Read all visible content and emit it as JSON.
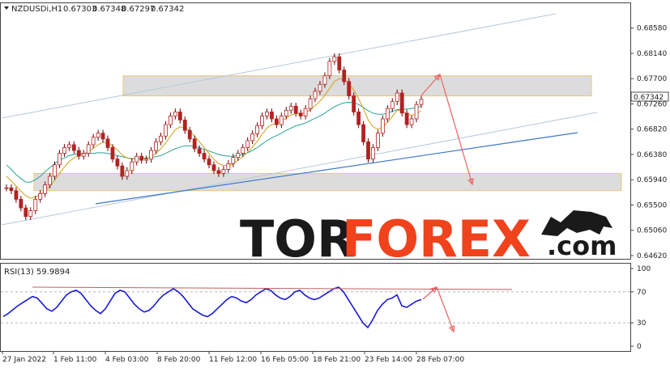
{
  "chart_data": [
    {
      "type": "candlestick",
      "symbol": "NZDUSDi,H1",
      "ohlc_header": [
        "0.67303",
        "0.67348",
        "0.67297",
        "0.67342"
      ],
      "current_price": "0.67342",
      "ylim": [
        0.6462,
        0.689
      ],
      "y_ticks": [
        "0.68580",
        "0.68140",
        "0.67700",
        "0.67260",
        "0.66820",
        "0.66380",
        "0.65940",
        "0.65500",
        "0.65060",
        "0.64620"
      ],
      "x_ticks": [
        "27 Jan 2022",
        "1 Feb 11:00",
        "4 Feb 03:00",
        "8 Feb 20:00",
        "11 Feb 12:00",
        "16 Feb 05:00",
        "18 Feb 21:00",
        "23 Feb 14:00",
        "28 Feb 07:00"
      ],
      "closes": [
        0.658,
        0.6575,
        0.656,
        0.6545,
        0.653,
        0.654,
        0.656,
        0.657,
        0.6585,
        0.66,
        0.662,
        0.664,
        0.665,
        0.6655,
        0.6645,
        0.6635,
        0.664,
        0.6655,
        0.6668,
        0.6675,
        0.6665,
        0.665,
        0.663,
        0.6618,
        0.66,
        0.661,
        0.6625,
        0.6635,
        0.6628,
        0.663,
        0.6645,
        0.666,
        0.667,
        0.669,
        0.6705,
        0.6712,
        0.6698,
        0.668,
        0.6665,
        0.6648,
        0.664,
        0.663,
        0.662,
        0.661,
        0.6605,
        0.6612,
        0.6622,
        0.6633,
        0.664,
        0.665,
        0.6662,
        0.6674,
        0.6688,
        0.6705,
        0.6712,
        0.67,
        0.669,
        0.6705,
        0.6715,
        0.6722,
        0.671,
        0.6705,
        0.6718,
        0.6735,
        0.6748,
        0.676,
        0.6775,
        0.68,
        0.6808,
        0.6785,
        0.6765,
        0.674,
        0.6712,
        0.669,
        0.666,
        0.663,
        0.665,
        0.6675,
        0.67,
        0.6718,
        0.673,
        0.6745,
        0.671,
        0.669,
        0.67,
        0.6725,
        0.6734
      ],
      "ma_slow": [
        0.662,
        0.6612,
        0.6603,
        0.6596,
        0.659,
        0.659,
        0.6594,
        0.66,
        0.6608,
        0.6615,
        0.6622,
        0.6628,
        0.6632,
        0.6636,
        0.6638,
        0.664,
        0.664,
        0.664,
        0.664,
        0.6641,
        0.6641,
        0.664,
        0.6638,
        0.6636,
        0.6634,
        0.6632,
        0.6631,
        0.6631,
        0.6631,
        0.6632,
        0.6633,
        0.6634,
        0.6636,
        0.664,
        0.6644,
        0.6648,
        0.6651,
        0.6653,
        0.6653,
        0.6652,
        0.665,
        0.6647,
        0.6644,
        0.6641,
        0.6638,
        0.6636,
        0.6635,
        0.6635,
        0.6636,
        0.6638,
        0.6641,
        0.6645,
        0.665,
        0.6656,
        0.6662,
        0.6667,
        0.6671,
        0.6675,
        0.668,
        0.6684,
        0.6688,
        0.669,
        0.6693,
        0.6697,
        0.6701,
        0.6705,
        0.671,
        0.6716,
        0.6721,
        0.6725,
        0.6728,
        0.6729,
        0.6728,
        0.6725,
        0.672,
        0.6714,
        0.671,
        0.6708,
        0.6708,
        0.671,
        0.6713,
        0.6716,
        0.6717,
        0.6717,
        0.6718,
        0.672,
        0.6722
      ],
      "ma_fast": [
        0.66,
        0.6592,
        0.6583,
        0.6574,
        0.6566,
        0.6562,
        0.6564,
        0.6568,
        0.6575,
        0.6583,
        0.6593,
        0.6605,
        0.6616,
        0.6626,
        0.6632,
        0.6636,
        0.6639,
        0.6643,
        0.6649,
        0.6655,
        0.6659,
        0.6658,
        0.6653,
        0.6646,
        0.6637,
        0.6632,
        0.663,
        0.6631,
        0.6631,
        0.6631,
        0.6634,
        0.664,
        0.6648,
        0.6658,
        0.667,
        0.6681,
        0.6686,
        0.6685,
        0.6679,
        0.667,
        0.666,
        0.665,
        0.664,
        0.663,
        0.6622,
        0.6619,
        0.6619,
        0.6622,
        0.6628,
        0.6634,
        0.6642,
        0.6651,
        0.6661,
        0.6673,
        0.6684,
        0.669,
        0.6692,
        0.6696,
        0.6701,
        0.6707,
        0.6709,
        0.6709,
        0.6711,
        0.6716,
        0.6723,
        0.6731,
        0.6741,
        0.6753,
        0.6765,
        0.677,
        0.6768,
        0.6762,
        0.675,
        0.6735,
        0.6718,
        0.6698,
        0.6686,
        0.6682,
        0.6686,
        0.6694,
        0.6704,
        0.6715,
        0.6714,
        0.6709,
        0.6706,
        0.6709,
        0.6714
      ],
      "zones": [
        {
          "from": 0.674,
          "to": 0.6775
        },
        {
          "from": 0.6575,
          "to": 0.6605
        }
      ],
      "colors": {
        "candle": "#b22222",
        "wick": "#6b0000",
        "ma_slow": "#2aa198",
        "ma_fast": "#d4a017",
        "channel": "#b8c8d8",
        "trend": "#3a78c8",
        "zone_fill": "#d6d6d6",
        "zone_border": "#e8c87a",
        "forecast_arrow": "#f06060",
        "price_box": "#ffffff"
      }
    },
    {
      "type": "line",
      "indicator": "RSI(13)",
      "label": "RSI(13) 59.9894",
      "ylim": [
        0,
        100
      ],
      "y_ticks": [
        "100",
        "70",
        "30",
        "0"
      ],
      "series": [
        {
          "values": [
            38,
            42,
            47,
            52,
            56,
            60,
            64,
            62,
            55,
            48,
            45,
            50,
            58,
            66,
            70,
            72,
            68,
            60,
            52,
            46,
            42,
            48,
            58,
            68,
            72,
            70,
            62,
            54,
            48,
            44,
            46,
            52,
            60,
            66,
            70,
            74,
            70,
            64,
            56,
            48,
            44,
            40,
            38,
            42,
            48,
            54,
            60,
            64,
            62,
            58,
            56,
            60,
            66,
            70,
            74,
            72,
            66,
            62,
            60,
            64,
            70,
            72,
            66,
            62,
            60,
            62,
            66,
            70,
            74,
            76,
            70,
            60,
            50,
            40,
            30,
            24,
            34,
            46,
            54,
            60,
            62,
            66,
            52,
            50,
            54,
            58,
            60
          ]
        }
      ],
      "resistance_line": {
        "from": 76,
        "to": 73
      },
      "colors": {
        "rsi": "#1a1ad6",
        "resistance": "#c06060",
        "arrow": "#f06060"
      }
    }
  ],
  "watermark": {
    "part1": "TOR",
    "part2": "FOREX",
    "suffix": ".com"
  }
}
